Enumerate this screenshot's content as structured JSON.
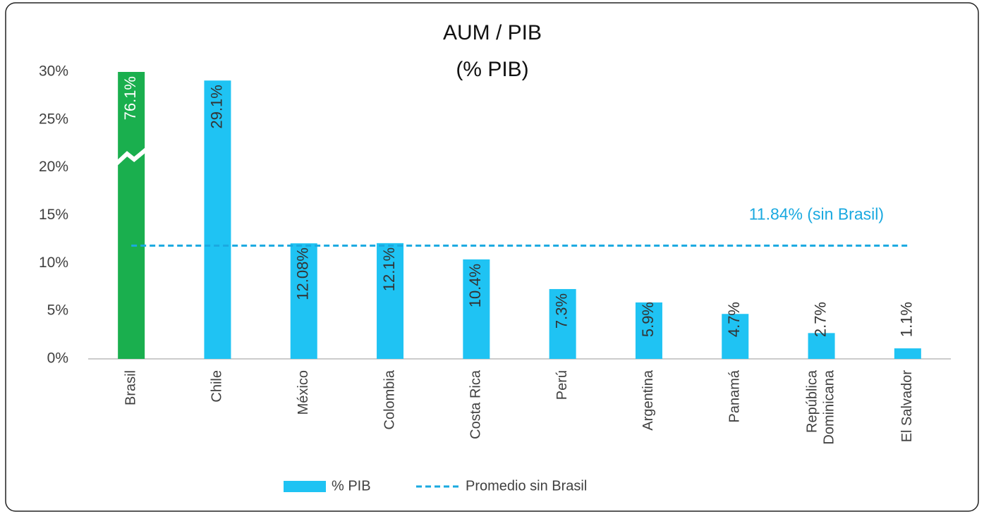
{
  "chart_data": {
    "type": "bar",
    "title": "AUM / PIB",
    "subtitle": "(% PIB)",
    "categories": [
      "Brasil",
      "Chile",
      "México",
      "Colombia",
      "Costa Rica",
      "Perú",
      "Argentina",
      "Panamá",
      "República Dominicana",
      "El Salvador"
    ],
    "series": [
      {
        "name": "% PIB",
        "color": "#1fc3f3",
        "colors": [
          "#1aaf4e",
          "#1fc3f3",
          "#1fc3f3",
          "#1fc3f3",
          "#1fc3f3",
          "#1fc3f3",
          "#1fc3f3",
          "#1fc3f3",
          "#1fc3f3",
          "#1fc3f3"
        ],
        "values": [
          76.1,
          29.1,
          12.08,
          12.1,
          10.4,
          7.3,
          5.9,
          4.7,
          2.7,
          1.1
        ],
        "value_labels": [
          "76.1%",
          "29.1%",
          "12.08%",
          "12.1%",
          "10.4%",
          "7.3%",
          "5.9%",
          "4.7%",
          "2.7%",
          "1.1%"
        ]
      }
    ],
    "reference_line": {
      "name": "Promedio sin Brasil",
      "value": 11.84,
      "color": "#1aa9e0",
      "label": "11.84% (sin Brasil)"
    },
    "ylim": [
      0,
      30
    ],
    "yticks": [
      {
        "value": 0,
        "label": "0%"
      },
      {
        "value": 5,
        "label": "5%"
      },
      {
        "value": 10,
        "label": "10%"
      },
      {
        "value": 15,
        "label": "15%"
      },
      {
        "value": 20,
        "label": "20%"
      },
      {
        "value": 25,
        "label": "25%"
      },
      {
        "value": 30,
        "label": "30%"
      }
    ],
    "grid": false
  }
}
